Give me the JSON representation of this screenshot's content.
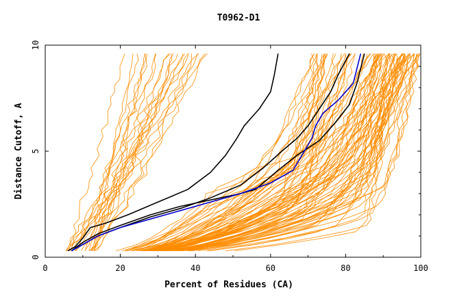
{
  "chart_data": {
    "type": "line",
    "title": "T0962-D1",
    "xlabel": "Percent of Residues (CA)",
    "ylabel": "Distance Cutoff, A",
    "xlim": [
      0,
      100
    ],
    "ylim": [
      0,
      10
    ],
    "x_ticks": [
      0,
      20,
      40,
      60,
      80,
      100
    ],
    "y_ticks": [
      0,
      5,
      10
    ],
    "x_tick_labels": [
      "0",
      "20",
      "40",
      "60",
      "80",
      "100"
    ],
    "y_tick_labels": [
      "0",
      "5",
      "10"
    ],
    "grid": false,
    "legend": "none",
    "colors": {
      "background_models": "#ff8c00",
      "highlight_black": "#000000",
      "highlight_blue": "#0000cc"
    },
    "background_models": {
      "count": 110,
      "description_groups": [
        {
          "kind": "steep-left",
          "count": 22,
          "x_at_10": [
            15,
            45
          ]
        },
        {
          "kind": "middle",
          "count": 30,
          "x_at_10": [
            70,
            88
          ]
        },
        {
          "kind": "right",
          "count": 58,
          "x_at_10": [
            88,
            100
          ]
        }
      ]
    },
    "series": [
      {
        "color": "black",
        "points": [
          [
            6,
            0.3
          ],
          [
            8,
            0.5
          ],
          [
            10,
            0.9
          ],
          [
            12,
            1.4
          ],
          [
            16,
            1.6
          ],
          [
            22,
            2
          ],
          [
            30,
            2.6
          ],
          [
            38,
            3.2
          ],
          [
            44,
            4
          ],
          [
            48,
            4.8
          ],
          [
            51,
            5.6
          ],
          [
            53,
            6.2
          ],
          [
            57,
            7
          ],
          [
            60,
            7.8
          ],
          [
            61,
            8.6
          ],
          [
            62,
            9.6
          ]
        ]
      },
      {
        "color": "black",
        "points": [
          [
            7,
            0.3
          ],
          [
            10,
            0.6
          ],
          [
            14,
            1
          ],
          [
            20,
            1.4
          ],
          [
            28,
            1.9
          ],
          [
            36,
            2.3
          ],
          [
            44,
            2.8
          ],
          [
            52,
            3.4
          ],
          [
            58,
            4.2
          ],
          [
            63,
            5
          ],
          [
            67,
            5.6
          ],
          [
            70,
            6.2
          ],
          [
            73,
            7
          ],
          [
            76,
            7.8
          ],
          [
            78,
            8.6
          ],
          [
            81,
            9.6
          ]
        ]
      },
      {
        "color": "black",
        "points": [
          [
            7,
            0.3
          ],
          [
            10,
            0.7
          ],
          [
            14,
            1.1
          ],
          [
            20,
            1.5
          ],
          [
            28,
            2
          ],
          [
            36,
            2.4
          ],
          [
            44,
            2.7
          ],
          [
            52,
            3
          ],
          [
            56,
            3.2
          ],
          [
            62,
            4.1
          ],
          [
            67,
            4.8
          ],
          [
            73,
            5.5
          ],
          [
            77,
            6.3
          ],
          [
            81,
            7.2
          ],
          [
            83,
            8.2
          ],
          [
            85,
            9.6
          ]
        ]
      },
      {
        "color": "blue",
        "points": [
          [
            7,
            0.3
          ],
          [
            10,
            0.6
          ],
          [
            14,
            1
          ],
          [
            20,
            1.4
          ],
          [
            28,
            1.8
          ],
          [
            36,
            2.2
          ],
          [
            44,
            2.6
          ],
          [
            52,
            3
          ],
          [
            60,
            3.5
          ],
          [
            66,
            4.1
          ],
          [
            69,
            5
          ],
          [
            71,
            5.6
          ],
          [
            72,
            6.2
          ],
          [
            74,
            6.8
          ],
          [
            78,
            7.4
          ],
          [
            82,
            8.2
          ],
          [
            84,
            9.6
          ]
        ]
      }
    ]
  }
}
